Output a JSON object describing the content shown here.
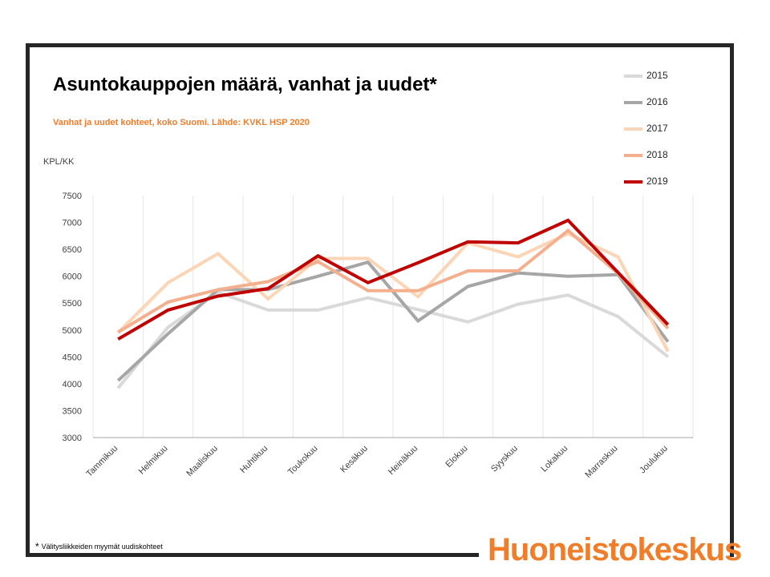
{
  "title": "Asuntokauppojen määrä, vanhat ja uudet*",
  "subtitle": "Vanhat ja uudet kohteet, koko Suomi. Lähde: KVKL HSP 2020",
  "footnote": "Välitysliikkeiden myymät uudiskohteet",
  "footnote_mark": "*",
  "brand": "Huoneistokeskus",
  "colors": {
    "brand": "#f07d2a",
    "frame": "#262626"
  },
  "chart_data": {
    "type": "line",
    "title": "Asuntokauppojen määrä, vanhat ja uudet*",
    "ylabel": "KPL/KK",
    "xlabel": "",
    "ylim": [
      3000,
      7500
    ],
    "yticks": [
      3000,
      3500,
      4000,
      4500,
      5000,
      5500,
      6000,
      6500,
      7000,
      7500
    ],
    "grid": "vertical",
    "legend_position": "top-right",
    "categories": [
      "Tammikuu",
      "Helmikuu",
      "Maaliskuu",
      "Huhtikuu",
      "Toukokuu",
      "Kesäkuu",
      "Heinäkuu",
      "Elokuu",
      "Syyskuu",
      "Lokakuu",
      "Marraskuu",
      "Joulukuu"
    ],
    "series": [
      {
        "name": "2015",
        "color": "#d9d9d9",
        "values": [
          3920,
          5050,
          5700,
          5370,
          5370,
          5600,
          5380,
          5150,
          5480,
          5650,
          5250,
          4500
        ]
      },
      {
        "name": "2016",
        "color": "#a6a6a6",
        "values": [
          4060,
          4930,
          5750,
          5750,
          6000,
          6260,
          5170,
          5810,
          6060,
          6000,
          6030,
          4780
        ]
      },
      {
        "name": "2017",
        "color": "#fbd5b5",
        "values": [
          4950,
          5880,
          6420,
          5580,
          6330,
          6330,
          5620,
          6620,
          6360,
          6790,
          6360,
          4600
        ]
      },
      {
        "name": "2018",
        "color": "#f4b08e",
        "values": [
          4960,
          5520,
          5750,
          5900,
          6270,
          5730,
          5730,
          6100,
          6100,
          6850,
          6050,
          5030
        ]
      },
      {
        "name": "2019",
        "color": "#c00000",
        "values": [
          4830,
          5370,
          5630,
          5770,
          6380,
          5880,
          6250,
          6640,
          6620,
          7040,
          6070,
          5100
        ]
      }
    ]
  }
}
